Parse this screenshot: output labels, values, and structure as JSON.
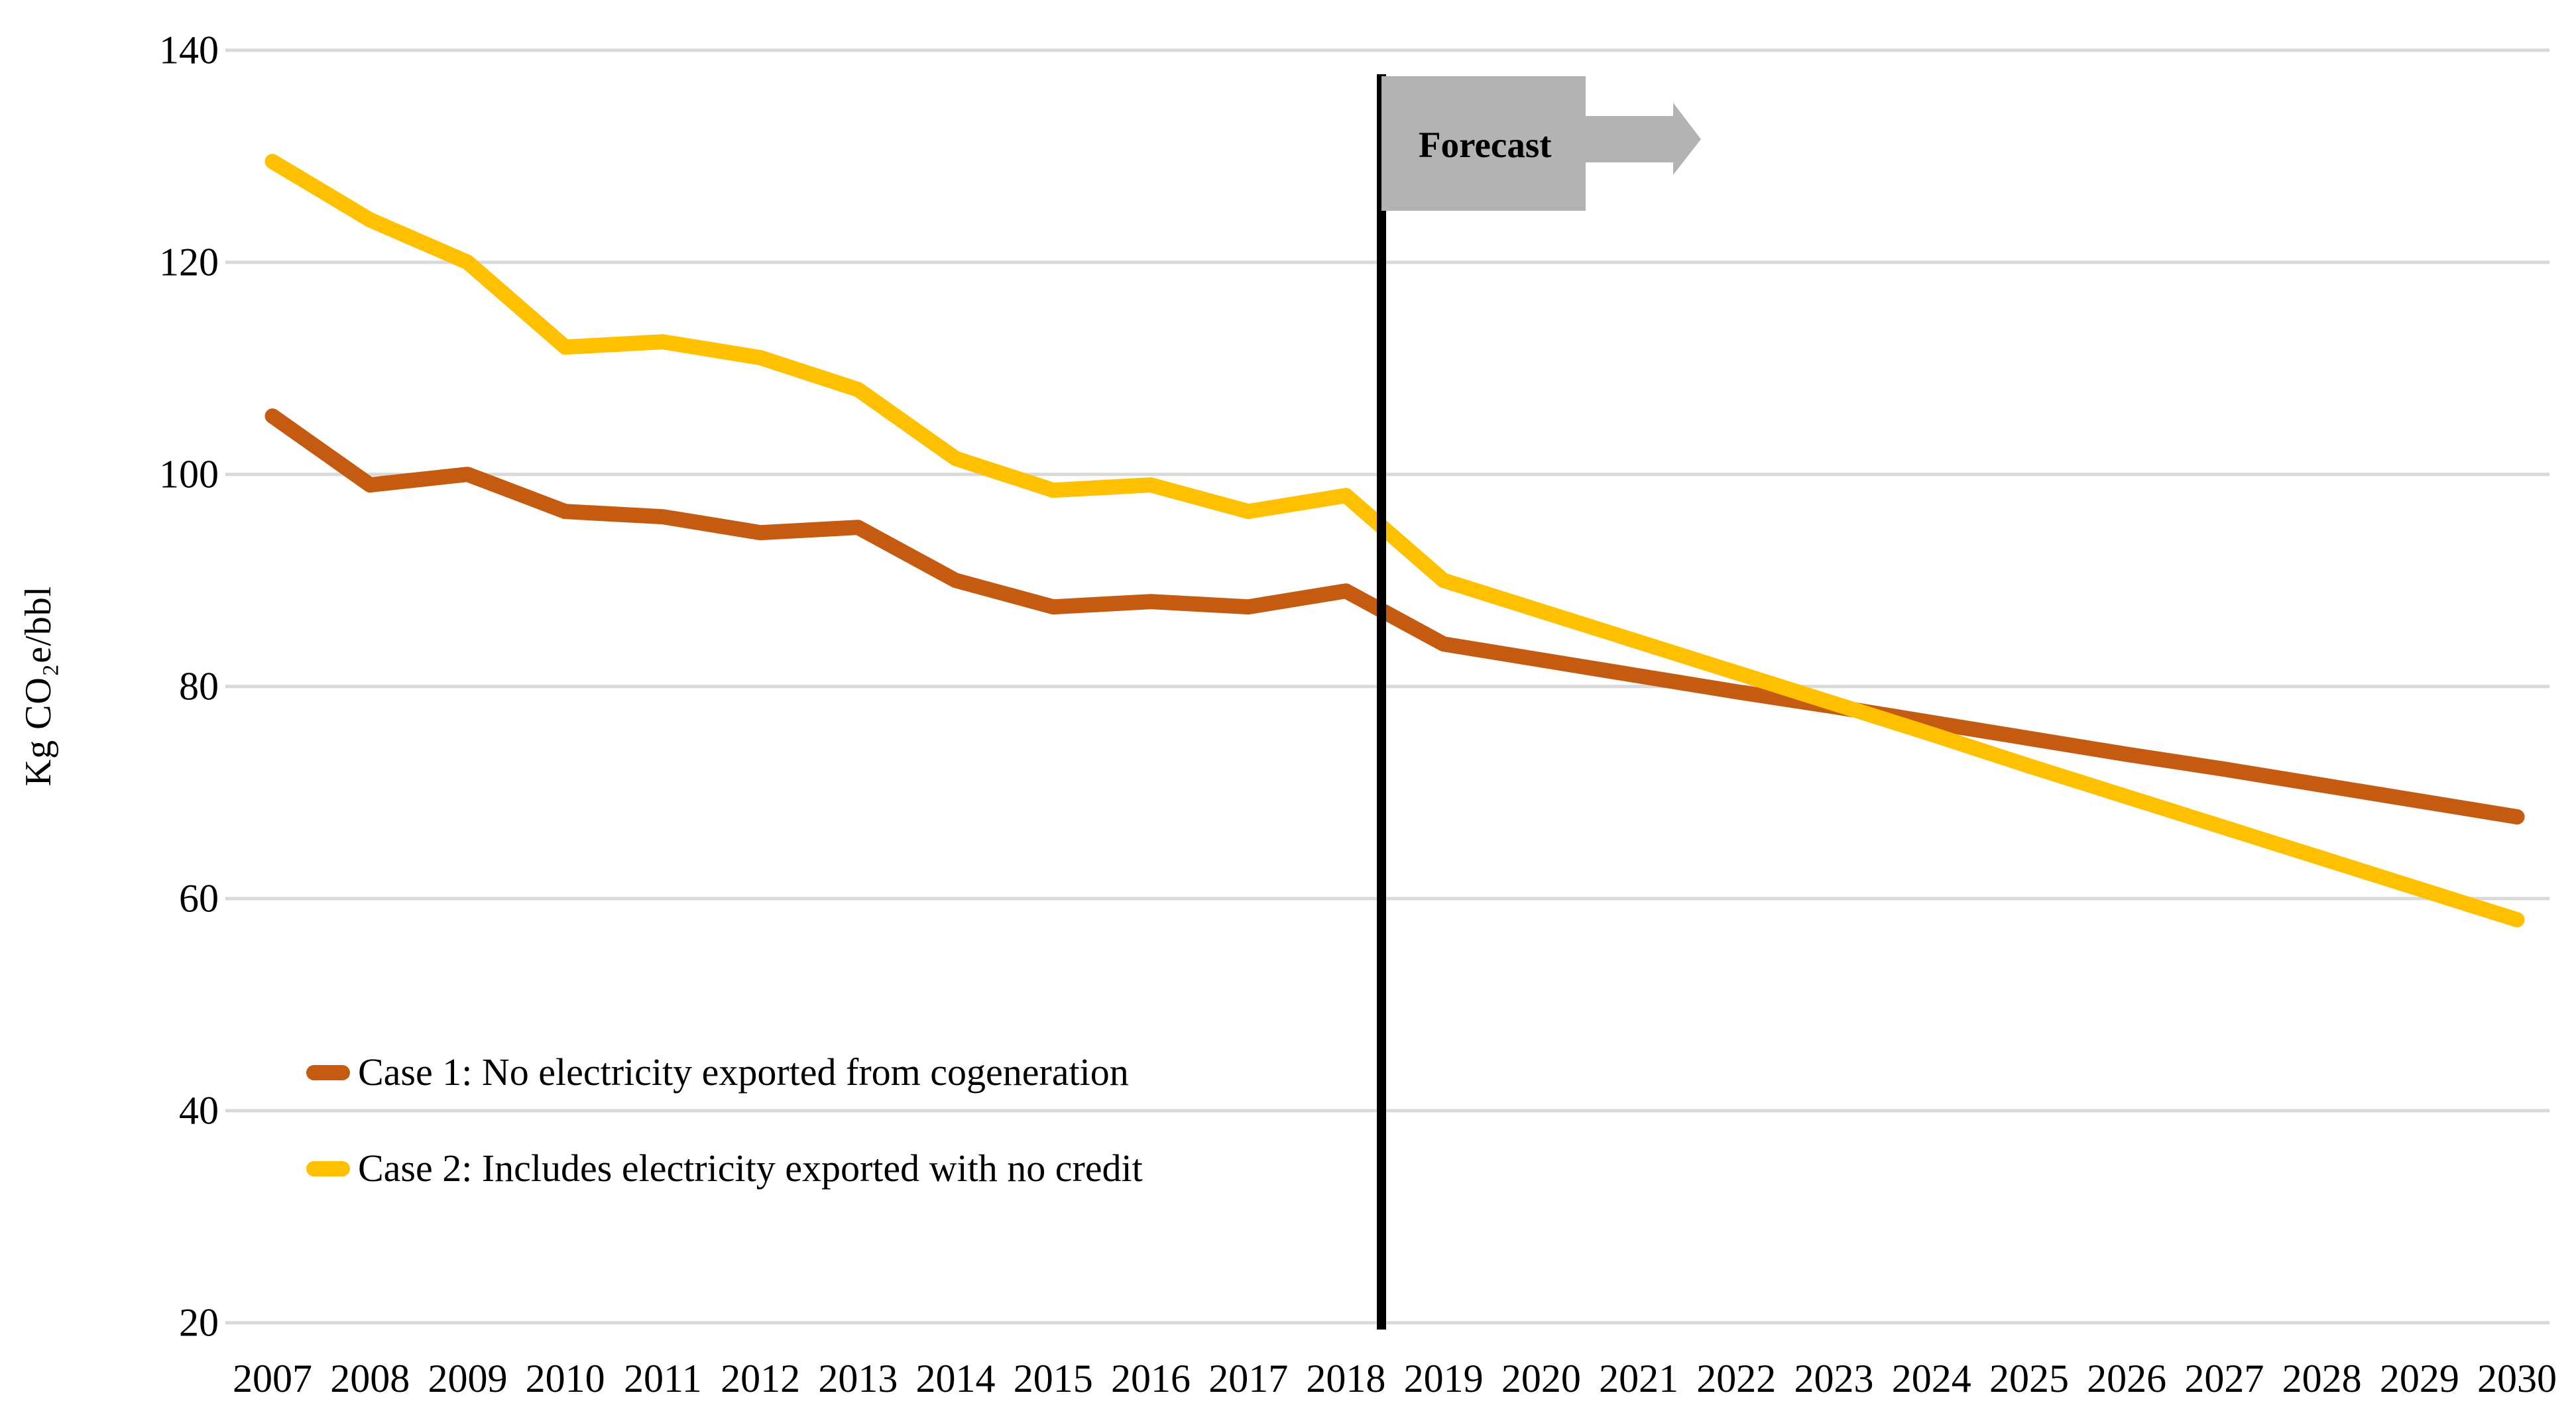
{
  "y_axis": {
    "title": "Kg CO₂e/bbl",
    "ticks": [
      20,
      40,
      60,
      80,
      100,
      120,
      140
    ],
    "min": 20,
    "max": 140
  },
  "x_axis": {
    "years": [
      2007,
      2008,
      2009,
      2010,
      2011,
      2012,
      2013,
      2014,
      2015,
      2016,
      2017,
      2018,
      2019,
      2020,
      2021,
      2022,
      2023,
      2024,
      2025,
      2026,
      2027,
      2028,
      2029,
      2030
    ]
  },
  "forecast": {
    "label": "Forecast",
    "boundary_position": 2018.36,
    "box_color": "#b3b3b3",
    "line_color": "#000000"
  },
  "legend": [
    {
      "label": "Case 1: No electricity exported from cogeneration",
      "color": "#C55A11"
    },
    {
      "label": "Case 2: Includes electricity exported with no credit",
      "color": "#FFC000"
    }
  ],
  "colors": {
    "case1": "#C55A11",
    "case2": "#FFC000",
    "gridline": "#D9D9D9",
    "text": "#000000"
  },
  "chart_data": {
    "type": "line",
    "title": "",
    "xlabel": "",
    "ylabel": "Kg CO₂e/bbl",
    "ylim": [
      20,
      140
    ],
    "grid": "horizontal-only",
    "legend_position": "inside-lower-left",
    "x": [
      2007,
      2008,
      2009,
      2010,
      2011,
      2012,
      2013,
      2014,
      2015,
      2016,
      2017,
      2018,
      2019,
      2020,
      2021,
      2022,
      2023,
      2024,
      2025,
      2026,
      2027,
      2028,
      2029,
      2030
    ],
    "series": [
      {
        "name": "Case 1: No electricity exported from cogeneration",
        "color": "#C55A11",
        "values": [
          105.5,
          99,
          100,
          96.5,
          96,
          94.5,
          95,
          90,
          87.5,
          88,
          87.5,
          89,
          84,
          82.5,
          81,
          79.5,
          78.1,
          76.6,
          75.1,
          73.6,
          72.2,
          70.7,
          69.2,
          67.7
        ]
      },
      {
        "name": "Case 2: Includes electricity exported with no credit",
        "color": "#FFC000",
        "values": [
          129.5,
          124,
          120,
          112,
          112.5,
          111,
          108,
          101.5,
          98.5,
          99,
          96.5,
          98,
          90,
          87.1,
          84.2,
          81.3,
          78.4,
          75.5,
          72.5,
          69.6,
          66.7,
          63.8,
          60.9,
          58
        ]
      }
    ],
    "annotations": [
      {
        "type": "vline",
        "x": 2018.36,
        "color": "#000000",
        "note": "history/forecast boundary"
      },
      {
        "type": "label",
        "text": "Forecast",
        "style": "gray box with right arrow at top of boundary line"
      }
    ]
  }
}
